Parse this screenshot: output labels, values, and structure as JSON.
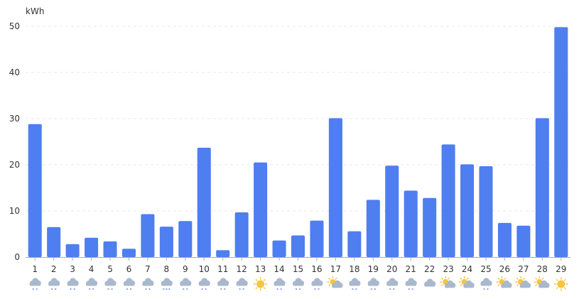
{
  "chart_data": {
    "type": "bar",
    "title": "",
    "xlabel": "",
    "ylabel": "kWh",
    "ylim": [
      0,
      50
    ],
    "yticks": [
      0,
      10,
      20,
      30,
      40,
      50
    ],
    "grid": true,
    "categories": [
      "1",
      "2",
      "3",
      "4",
      "5",
      "6",
      "7",
      "8",
      "9",
      "10",
      "11",
      "12",
      "13",
      "14",
      "15",
      "16",
      "17",
      "18",
      "19",
      "20",
      "21",
      "22",
      "23",
      "24",
      "25",
      "26",
      "27",
      "28",
      "29"
    ],
    "values": [
      28.8,
      6.5,
      2.8,
      4.2,
      3.4,
      1.8,
      9.3,
      6.6,
      7.8,
      23.7,
      1.5,
      9.7,
      20.5,
      3.6,
      4.7,
      7.9,
      30.1,
      5.6,
      12.4,
      19.8,
      14.4,
      12.8,
      24.4,
      20.1,
      19.7,
      7.4,
      6.8,
      30.1,
      49.8
    ],
    "weather": [
      "light-rain-icon",
      "light-rain-icon",
      "light-rain-icon",
      "light-rain-icon",
      "light-rain-icon",
      "light-rain-icon",
      "light-rain-icon",
      "sleet-icon",
      "light-rain-icon",
      "light-rain-icon",
      "light-rain-icon",
      "light-rain-icon",
      "sun-icon",
      "light-rain-icon",
      "light-rain-icon",
      "light-rain-icon",
      "partly-cloudy-icon",
      "light-rain-icon",
      "light-rain-icon",
      "light-rain-icon",
      "light-rain-icon",
      "cloudy-icon",
      "partly-cloudy-icon",
      "partly-cloudy-icon",
      "light-rain-icon",
      "partly-cloudy-icon",
      "partly-cloudy-icon",
      "partly-cloudy-icon",
      "sun-icon"
    ],
    "colors": {
      "bar": "#4e7ef0",
      "grid": "#e8e8e8",
      "axis": "#aaaaaa",
      "cloud": "#a9b8cc",
      "sun": "#f6c544",
      "rain": "#7fa3dc"
    }
  }
}
